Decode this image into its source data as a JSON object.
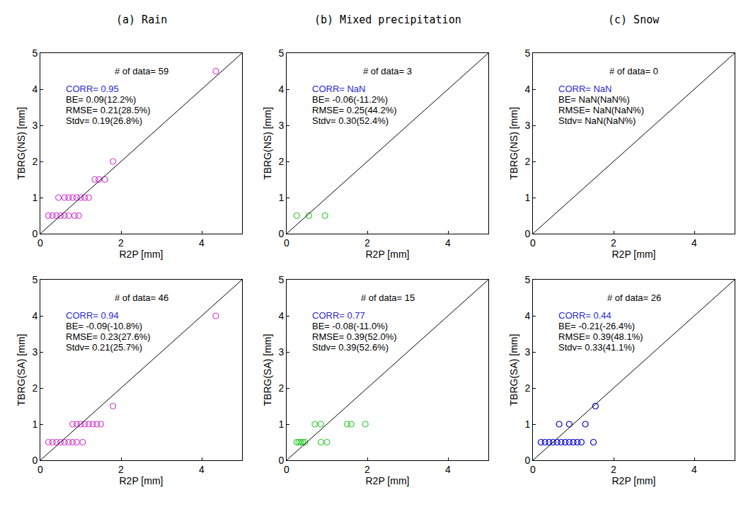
{
  "chart_data": [
    {
      "type": "scatter",
      "title": "(a) Rain",
      "x_label": "R2P [mm]",
      "y_label": "TBRG(NS) [mm]",
      "xlim": [
        0,
        5
      ],
      "ylim": [
        0,
        5
      ],
      "xticks": [
        0,
        2,
        4
      ],
      "yticks": [
        0,
        1,
        2,
        3,
        4,
        5
      ],
      "grid": false,
      "series": [
        {
          "type": "scatter",
          "color": "#d63fd6",
          "marker": "circle-open",
          "x": [
            4.35,
            1.8,
            1.35,
            1.45,
            1.6,
            0.45,
            0.6,
            0.7,
            0.8,
            0.9,
            1.0,
            1.1,
            1.2,
            0.2,
            0.3,
            0.4,
            0.5,
            0.6,
            0.7,
            0.85,
            0.95
          ],
          "values": [
            4.5,
            2.0,
            1.5,
            1.5,
            1.5,
            1.0,
            1.0,
            1.0,
            1.0,
            1.0,
            1.0,
            1.0,
            1.0,
            0.5,
            0.5,
            0.5,
            0.5,
            0.5,
            0.5,
            0.5,
            0.5
          ]
        },
        {
          "type": "line",
          "color": "#000000",
          "line_style": "solid",
          "x": [
            0,
            5
          ],
          "values": [
            0,
            5
          ]
        }
      ],
      "annotations": [
        {
          "text": "# of data= 59",
          "color": "#000000"
        },
        {
          "text": "CORR= 0.95",
          "color": "#2a2ad0"
        },
        {
          "text": "BE= 0.09(12.2%)",
          "color": "#000000"
        },
        {
          "text": "RMSE= 0.21(28.5%)",
          "color": "#000000"
        },
        {
          "text": "Stdv= 0.19(26.8%)",
          "color": "#000000"
        }
      ]
    },
    {
      "type": "scatter",
      "title": "(b) Mixed precipitation",
      "x_label": "R2P [mm]",
      "y_label": "TBRG(NS) [mm]",
      "xlim": [
        0,
        5
      ],
      "ylim": [
        0,
        5
      ],
      "xticks": [
        0,
        2,
        4
      ],
      "yticks": [
        0,
        1,
        2,
        3,
        4,
        5
      ],
      "grid": false,
      "series": [
        {
          "type": "scatter",
          "color": "#33cc33",
          "marker": "circle-open",
          "x": [
            0.25,
            0.55,
            0.95
          ],
          "values": [
            0.5,
            0.5,
            0.5
          ]
        },
        {
          "type": "line",
          "color": "#000000",
          "line_style": "solid",
          "x": [
            0,
            5
          ],
          "values": [
            0,
            5
          ]
        }
      ],
      "annotations": [
        {
          "text": "# of data= 3",
          "color": "#000000"
        },
        {
          "text": "CORR= NaN",
          "color": "#2a2ad0"
        },
        {
          "text": "BE= -0.06(-11.2%)",
          "color": "#000000"
        },
        {
          "text": "RMSE= 0.25(44.2%)",
          "color": "#000000"
        },
        {
          "text": "Stdv= 0.30(52.4%)",
          "color": "#000000"
        }
      ]
    },
    {
      "type": "scatter",
      "title": "(c) Snow",
      "x_label": "R2P [mm]",
      "y_label": "TBRG(NS) [mm]",
      "xlim": [
        0,
        5
      ],
      "ylim": [
        0,
        5
      ],
      "xticks": [
        0,
        2,
        4
      ],
      "yticks": [
        0,
        1,
        2,
        3,
        4,
        5
      ],
      "grid": false,
      "series": [
        {
          "type": "scatter",
          "color": "#0000cc",
          "marker": "circle-open",
          "x": [],
          "values": []
        },
        {
          "type": "line",
          "color": "#000000",
          "line_style": "solid",
          "x": [
            0,
            5
          ],
          "values": [
            0,
            5
          ]
        }
      ],
      "annotations": [
        {
          "text": "# of data= 0",
          "color": "#000000"
        },
        {
          "text": "CORR= NaN",
          "color": "#2a2ad0"
        },
        {
          "text": "BE= NaN(NaN%)",
          "color": "#000000"
        },
        {
          "text": "RMSE= NaN(NaN%)",
          "color": "#000000"
        },
        {
          "text": "Stdv= NaN(NaN%)",
          "color": "#000000"
        }
      ]
    },
    {
      "type": "scatter",
      "x_label": "R2P [mm]",
      "y_label": "TBRG(SA) [mm]",
      "xlim": [
        0,
        5
      ],
      "ylim": [
        0,
        5
      ],
      "xticks": [
        0,
        2,
        4
      ],
      "yticks": [
        0,
        1,
        2,
        3,
        4,
        5
      ],
      "grid": false,
      "series": [
        {
          "type": "scatter",
          "color": "#d63fd6",
          "marker": "circle-open",
          "x": [
            4.35,
            1.8,
            0.8,
            0.9,
            1.0,
            1.1,
            1.2,
            1.3,
            1.4,
            1.5,
            0.2,
            0.3,
            0.4,
            0.5,
            0.6,
            0.7,
            0.8,
            0.9,
            1.05
          ],
          "values": [
            4.0,
            1.5,
            1.0,
            1.0,
            1.0,
            1.0,
            1.0,
            1.0,
            1.0,
            1.0,
            0.5,
            0.5,
            0.5,
            0.5,
            0.5,
            0.5,
            0.5,
            0.5,
            0.5
          ]
        },
        {
          "type": "line",
          "color": "#000000",
          "line_style": "solid",
          "x": [
            0,
            5
          ],
          "values": [
            0,
            5
          ]
        }
      ],
      "annotations": [
        {
          "text": "# of data= 46",
          "color": "#000000"
        },
        {
          "text": "CORR= 0.94",
          "color": "#2a2ad0"
        },
        {
          "text": "BE= -0.09(-10.8%)",
          "color": "#000000"
        },
        {
          "text": "RMSE= 0.23(27.6%)",
          "color": "#000000"
        },
        {
          "text": "Stdv= 0.21(25.7%)",
          "color": "#000000"
        }
      ]
    },
    {
      "type": "scatter",
      "x_label": "R2P [mm]",
      "y_label": "TBRG(SA) [mm]",
      "xlim": [
        0,
        5
      ],
      "ylim": [
        0,
        5
      ],
      "xticks": [
        0,
        2,
        4
      ],
      "yticks": [
        0,
        1,
        2,
        3,
        4,
        5
      ],
      "grid": false,
      "series": [
        {
          "type": "scatter",
          "color": "#33cc33",
          "marker": "circle-open",
          "x": [
            0.7,
            0.85,
            1.5,
            1.6,
            1.95,
            0.25,
            0.3,
            0.35,
            0.4,
            0.45,
            0.85,
            1.0
          ],
          "values": [
            1.0,
            1.0,
            1.0,
            1.0,
            1.0,
            0.5,
            0.5,
            0.5,
            0.5,
            0.5,
            0.5,
            0.5
          ]
        },
        {
          "type": "line",
          "color": "#000000",
          "line_style": "solid",
          "x": [
            0,
            5
          ],
          "values": [
            0,
            5
          ]
        }
      ],
      "annotations": [
        {
          "text": "# of data= 15",
          "color": "#000000"
        },
        {
          "text": "CORR= 0.77",
          "color": "#2a2ad0"
        },
        {
          "text": "BE= -0.08(-11.0%)",
          "color": "#000000"
        },
        {
          "text": "RMSE= 0.39(52.0%)",
          "color": "#000000"
        },
        {
          "text": "Stdv= 0.39(52.6%)",
          "color": "#000000"
        }
      ]
    },
    {
      "type": "scatter",
      "x_label": "R2P [mm]",
      "y_label": "TBRG(SA) [mm]",
      "xlim": [
        0,
        5
      ],
      "ylim": [
        0,
        5
      ],
      "xticks": [
        0,
        2,
        4
      ],
      "yticks": [
        0,
        1,
        2,
        3,
        4,
        5
      ],
      "grid": false,
      "series": [
        {
          "type": "scatter",
          "color": "#0000cc",
          "marker": "circle-open",
          "x": [
            1.55,
            0.65,
            0.9,
            1.3,
            0.2,
            0.3,
            0.4,
            0.5,
            0.6,
            0.7,
            0.8,
            0.9,
            1.0,
            1.1,
            1.2,
            1.5
          ],
          "values": [
            1.5,
            1.0,
            1.0,
            1.0,
            0.5,
            0.5,
            0.5,
            0.5,
            0.5,
            0.5,
            0.5,
            0.5,
            0.5,
            0.5,
            0.5,
            0.5
          ]
        },
        {
          "type": "line",
          "color": "#000000",
          "line_style": "solid",
          "x": [
            0,
            5
          ],
          "values": [
            0,
            5
          ]
        }
      ],
      "annotations": [
        {
          "text": "# of data= 26",
          "color": "#000000"
        },
        {
          "text": "CORR= 0.44",
          "color": "#2a2ad0"
        },
        {
          "text": "BE= -0.21(-26.4%)",
          "color": "#000000"
        },
        {
          "text": "RMSE= 0.39(48.1%)",
          "color": "#000000"
        },
        {
          "text": "Stdv= 0.33(41.1%)",
          "color": "#000000"
        }
      ]
    }
  ]
}
